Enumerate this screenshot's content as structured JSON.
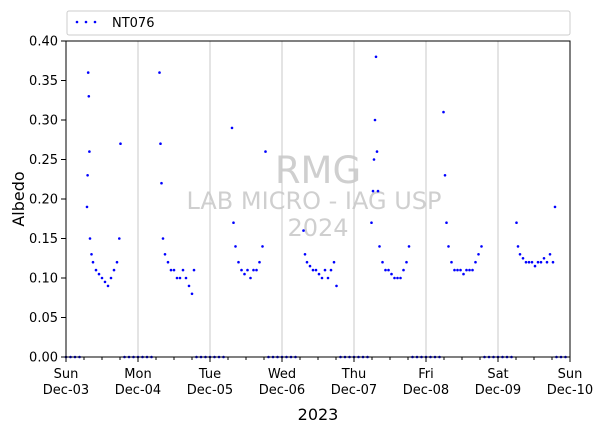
{
  "chart_data": {
    "type": "scatter",
    "title": "",
    "xlabel": "2023",
    "ylabel": "Albedo",
    "x_tick_labels": [
      {
        "day": "Sun",
        "date": "Dec-03"
      },
      {
        "day": "Mon",
        "date": "Dec-04"
      },
      {
        "day": "Tue",
        "date": "Dec-05"
      },
      {
        "day": "Wed",
        "date": "Dec-06"
      },
      {
        "day": "Thu",
        "date": "Dec-07"
      },
      {
        "day": "Fri",
        "date": "Dec-08"
      },
      {
        "day": "Sat",
        "date": "Dec-09"
      },
      {
        "day": "Sun",
        "date": "Dec-10"
      }
    ],
    "y_ticks": [
      "0.00",
      "0.05",
      "0.10",
      "0.15",
      "0.20",
      "0.25",
      "0.30",
      "0.35",
      "0.40"
    ],
    "xlim": [
      "2023-12-03 00:00",
      "2023-12-10 00:00"
    ],
    "ylim": [
      0,
      0.4
    ],
    "grid": "vertical lines at day boundaries",
    "legend_position": "top-left, above plot",
    "watermark": [
      "RMG",
      "LAB MICRO - IAG USP",
      "2024"
    ],
    "series": [
      {
        "name": "NT076",
        "color": "#0000ff",
        "marker": "dot",
        "x": [
          "2023-12-03 07:00",
          "2023-12-03 07:12",
          "2023-12-03 07:24",
          "2023-12-03 07:36",
          "2023-12-03 07:48",
          "2023-12-03 08:00",
          "2023-12-03 08:30",
          "2023-12-03 09:00",
          "2023-12-03 10:00",
          "2023-12-03 11:00",
          "2023-12-03 12:00",
          "2023-12-03 13:00",
          "2023-12-03 14:00",
          "2023-12-03 15:00",
          "2023-12-03 16:00",
          "2023-12-03 17:00",
          "2023-12-03 17:45",
          "2023-12-03 18:10",
          "2023-12-04 07:10",
          "2023-12-04 07:30",
          "2023-12-04 07:50",
          "2023-12-04 08:20",
          "2023-12-04 09:00",
          "2023-12-04 10:00",
          "2023-12-04 11:00",
          "2023-12-04 12:00",
          "2023-12-04 13:00",
          "2023-12-04 14:00",
          "2023-12-04 15:00",
          "2023-12-04 16:00",
          "2023-12-04 17:00",
          "2023-12-04 18:00",
          "2023-12-04 18:40",
          "2023-12-05 07:20",
          "2023-12-05 07:50",
          "2023-12-05 08:30",
          "2023-12-05 09:30",
          "2023-12-05 10:30",
          "2023-12-05 11:30",
          "2023-12-05 12:30",
          "2023-12-05 13:30",
          "2023-12-05 14:30",
          "2023-12-05 15:30",
          "2023-12-05 16:30",
          "2023-12-05 17:30",
          "2023-12-05 18:30",
          "2023-12-06 07:10",
          "2023-12-06 07:40",
          "2023-12-06 08:20",
          "2023-12-06 09:20",
          "2023-12-06 10:20",
          "2023-12-06 11:20",
          "2023-12-06 12:20",
          "2023-12-06 13:20",
          "2023-12-06 14:20",
          "2023-12-06 15:20",
          "2023-12-06 16:20",
          "2023-12-06 17:20",
          "2023-12-06 18:10",
          "2023-12-07 05:50",
          "2023-12-07 06:20",
          "2023-12-07 06:40",
          "2023-12-07 07:00",
          "2023-12-07 07:20",
          "2023-12-07 07:40",
          "2023-12-07 08:00",
          "2023-12-07 08:30",
          "2023-12-07 09:30",
          "2023-12-07 10:30",
          "2023-12-07 11:30",
          "2023-12-07 12:30",
          "2023-12-07 13:30",
          "2023-12-07 14:30",
          "2023-12-07 15:30",
          "2023-12-07 16:30",
          "2023-12-07 17:30",
          "2023-12-07 18:20",
          "2023-12-08 05:50",
          "2023-12-08 06:20",
          "2023-12-08 06:50",
          "2023-12-08 07:30",
          "2023-12-08 08:30",
          "2023-12-08 09:30",
          "2023-12-08 10:30",
          "2023-12-08 11:30",
          "2023-12-08 12:30",
          "2023-12-08 13:30",
          "2023-12-08 14:30",
          "2023-12-08 15:30",
          "2023-12-08 16:30",
          "2023-12-08 17:30",
          "2023-12-08 18:30",
          "2023-12-09 06:10",
          "2023-12-09 06:40",
          "2023-12-09 07:20",
          "2023-12-09 08:20",
          "2023-12-09 09:20",
          "2023-12-09 10:20",
          "2023-12-09 11:20",
          "2023-12-09 12:20",
          "2023-12-09 13:20",
          "2023-12-09 14:20",
          "2023-12-09 15:20",
          "2023-12-09 16:20",
          "2023-12-09 17:20",
          "2023-12-09 18:20",
          "2023-12-09 19:00"
        ],
        "y": [
          0.19,
          0.23,
          0.36,
          0.33,
          0.26,
          0.15,
          0.13,
          0.12,
          0.11,
          0.105,
          0.1,
          0.095,
          0.09,
          0.1,
          0.11,
          0.12,
          0.15,
          0.27,
          0.36,
          0.27,
          0.22,
          0.15,
          0.13,
          0.12,
          0.11,
          0.11,
          0.1,
          0.1,
          0.11,
          0.1,
          0.09,
          0.08,
          0.11,
          0.29,
          0.17,
          0.14,
          0.12,
          0.11,
          0.105,
          0.11,
          0.1,
          0.11,
          0.11,
          0.12,
          0.14,
          0.26,
          0.16,
          0.13,
          0.12,
          0.115,
          0.11,
          0.11,
          0.105,
          0.1,
          0.11,
          0.1,
          0.11,
          0.12,
          0.09,
          0.17,
          0.21,
          0.25,
          0.3,
          0.38,
          0.26,
          0.21,
          0.14,
          0.12,
          0.11,
          0.11,
          0.105,
          0.1,
          0.1,
          0.1,
          0.11,
          0.12,
          0.14,
          0.31,
          0.23,
          0.17,
          0.14,
          0.12,
          0.11,
          0.11,
          0.11,
          0.105,
          0.11,
          0.11,
          0.11,
          0.12,
          0.13,
          0.14,
          0.17,
          0.14,
          0.13,
          0.125,
          0.12,
          0.12,
          0.12,
          0.115,
          0.12,
          0.12,
          0.125,
          0.12,
          0.13,
          0.12,
          0.19
        ],
        "baseline_points_y": 0.0
      }
    ]
  }
}
